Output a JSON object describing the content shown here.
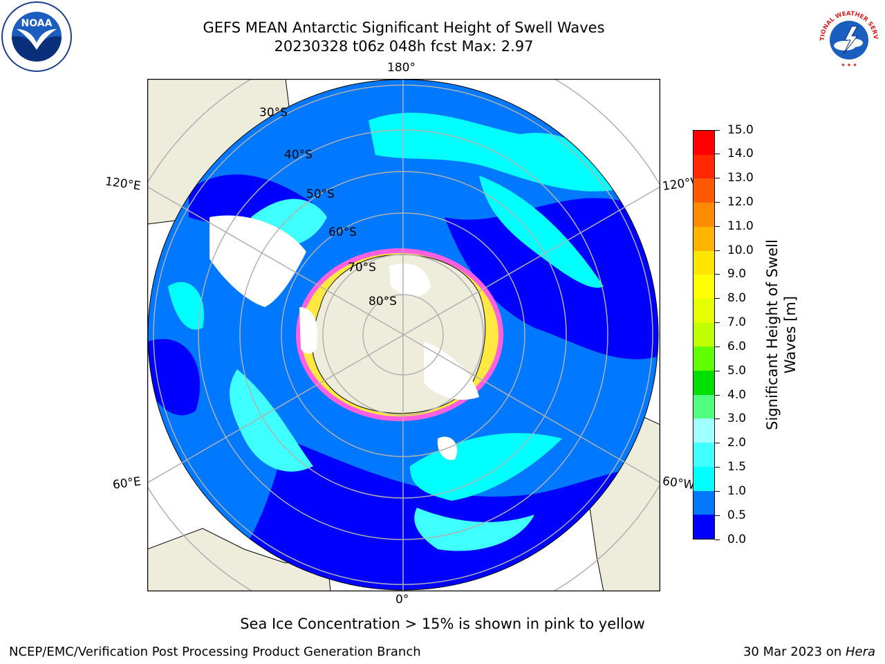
{
  "title": {
    "line1": "GEFS MEAN Antarctic Significant Height of Swell Waves",
    "line2": "20230328 t06z 048h fcst   Max: 2.97"
  },
  "map": {
    "projection": "south-polar-stereographic",
    "lon_labels": {
      "top": "180°",
      "bottom": "0°",
      "upper_left": "120°E",
      "lower_left": "60°E",
      "upper_right": "120°W",
      "lower_right": "60°W"
    },
    "lat_labels": [
      "30°S",
      "40°S",
      "50°S",
      "60°S",
      "70°S",
      "80°S"
    ],
    "colors": {
      "land": "#eeecdb",
      "ice": "#ffffff",
      "grid": "#b0b0b0"
    }
  },
  "colorbar": {
    "label": "Significant Height of Swell Waves [m]",
    "label_line1": "Significant Height of Swell",
    "label_line2": "Waves [m]",
    "ticks": [
      "0.0",
      "0.5",
      "1.0",
      "1.5",
      "2.0",
      "3.0",
      "4.0",
      "5.0",
      "6.0",
      "7.0",
      "8.0",
      "9.0",
      "10.0",
      "11.0",
      "12.0",
      "13.0",
      "14.0",
      "15.0"
    ],
    "colors": [
      "#0000ff",
      "#0078ff",
      "#00ffff",
      "#40ffff",
      "#a0ffff",
      "#50ff80",
      "#00e000",
      "#60ff00",
      "#c0ff00",
      "#e6ff00",
      "#ffff00",
      "#ffe600",
      "#ffb400",
      "#ff8c00",
      "#ff5a00",
      "#ff2800",
      "#ff0000"
    ]
  },
  "footnote": "Sea Ice Concentration > 15% is shown in pink to yellow",
  "credit": "NCEP/EMC/Verification Post Processing Product Generation Branch",
  "stamp": {
    "date": "30 Mar 2023 on ",
    "machine": "Hera"
  },
  "logos": {
    "left": "NOAA",
    "right": "NATIONAL WEATHER SERVICE"
  }
}
